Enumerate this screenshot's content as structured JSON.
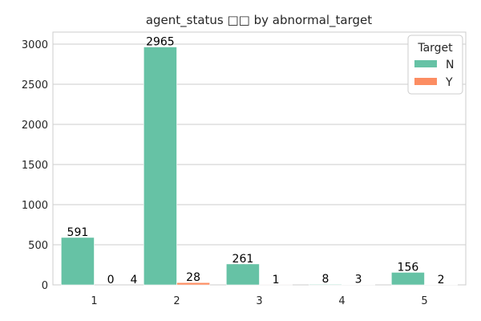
{
  "chart_data": {
    "type": "bar",
    "title": "agent_status □□ by abnormal_target",
    "xlabel": "",
    "ylabel": "",
    "categories": [
      "1",
      "2",
      "3",
      "4",
      "5"
    ],
    "ylim": [
      0,
      3150
    ],
    "yticks": [
      "0",
      "500",
      "1000",
      "1500",
      "2000",
      "2500",
      "3000"
    ],
    "grid": true,
    "legend": {
      "title": "Target",
      "position": "top-right"
    },
    "series": [
      {
        "name": "N",
        "color": "#66c2a5",
        "values": [
          591,
          2965,
          261,
          8,
          156
        ]
      },
      {
        "name": "Y",
        "color": "#fc8d62",
        "values": [
          0,
          28,
          1,
          3,
          2
        ]
      }
    ],
    "counts_at_zero_y": [
      "4"
    ]
  }
}
